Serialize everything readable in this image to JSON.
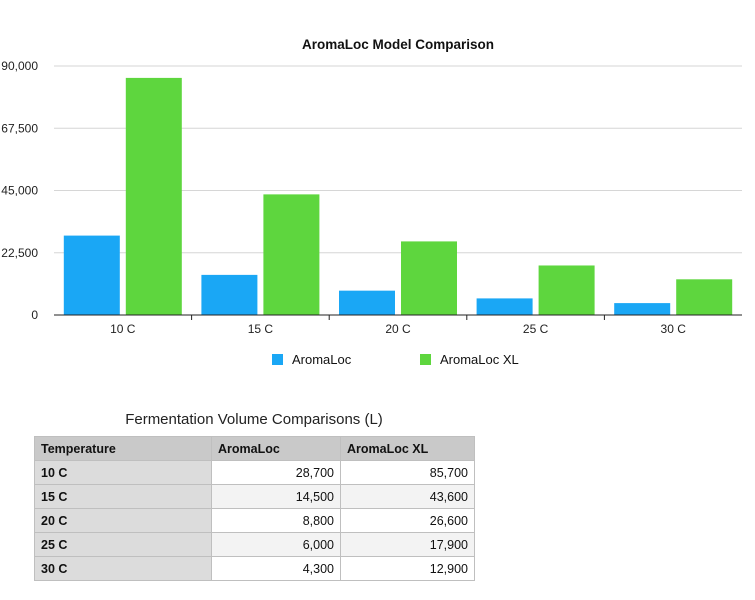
{
  "chart_data": {
    "type": "bar",
    "title": "AromaLoc Model Comparison",
    "categories": [
      "10 C",
      "15 C",
      "20 C",
      "25 C",
      "30 C"
    ],
    "series": [
      {
        "name": "AromaLoc",
        "values": [
          28700,
          14500,
          8800,
          6000,
          4300
        ],
        "color": "#1aa7f5"
      },
      {
        "name": "AromaLoc XL",
        "values": [
          85700,
          43600,
          26600,
          17900,
          12900
        ],
        "color": "#5ed63e"
      }
    ],
    "ylim": [
      0,
      90000
    ],
    "yticks": [
      "0",
      "22,500",
      "45,000",
      "67,500",
      "90,000"
    ],
    "grid": true,
    "legend": "bottom"
  },
  "table": {
    "title": "Fermentation Volume Comparisons (L)",
    "headers": [
      "Temperature",
      "AromaLoc",
      "AromaLoc XL"
    ],
    "rows": [
      [
        "10 C",
        "28,700",
        "85,700"
      ],
      [
        "15 C",
        "14,500",
        "43,600"
      ],
      [
        "20 C",
        "8,800",
        "26,600"
      ],
      [
        "25 C",
        "6,000",
        "17,900"
      ],
      [
        "30 C",
        "4,300",
        "12,900"
      ]
    ]
  }
}
